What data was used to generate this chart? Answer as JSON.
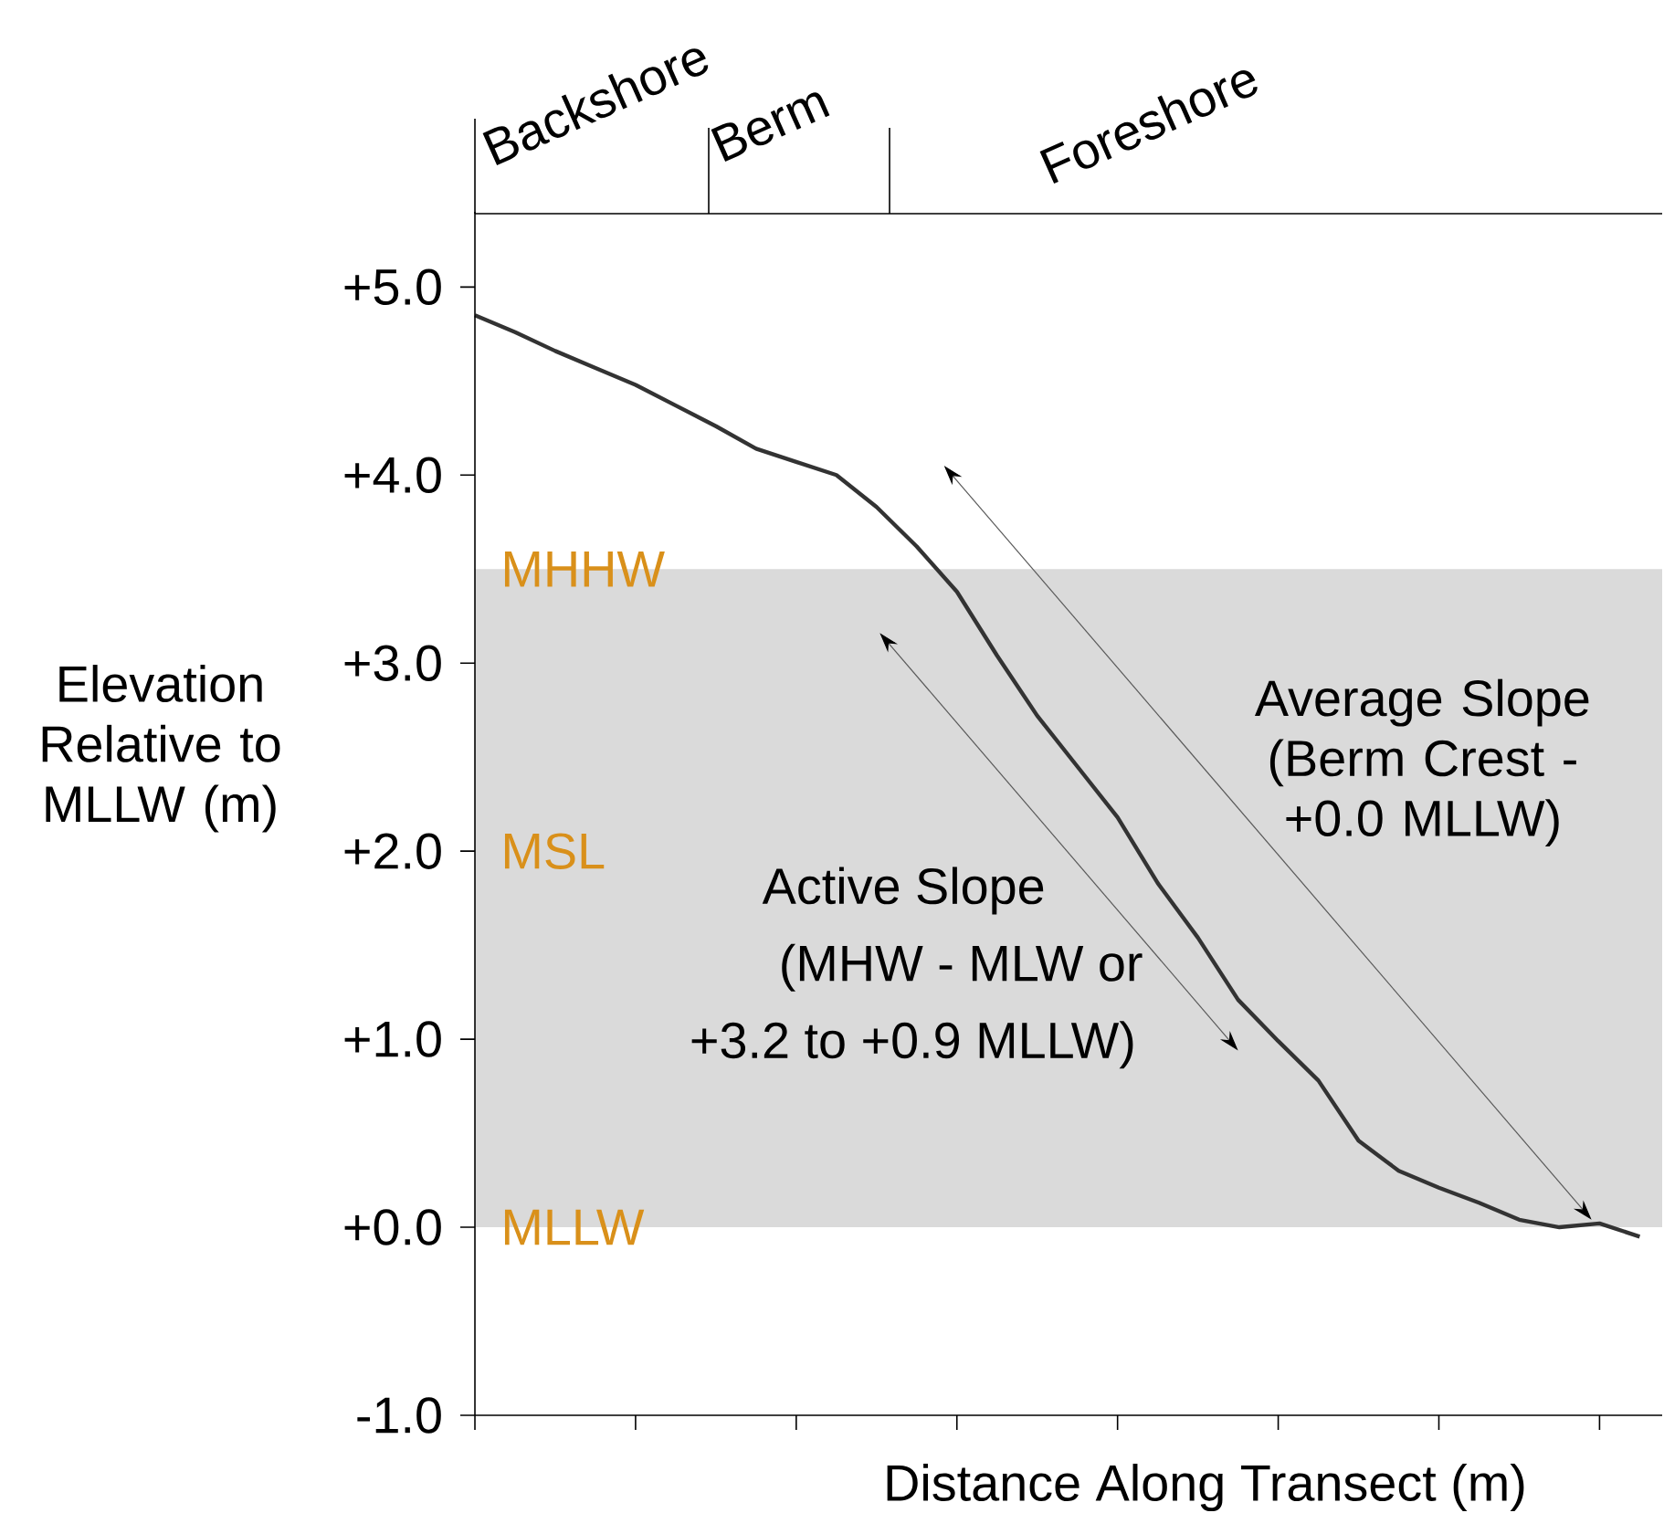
{
  "chart_data": {
    "type": "line",
    "categories": [
      null,
      null,
      null,
      null,
      null,
      null,
      null,
      null,
      null,
      null,
      null,
      null,
      null,
      null,
      null,
      null,
      null,
      null,
      null,
      null,
      null,
      null,
      null,
      null,
      null,
      null,
      null,
      null,
      null,
      null
    ],
    "values": [
      4.85,
      4.76,
      4.66,
      4.57,
      4.48,
      4.37,
      4.26,
      4.14,
      4.07,
      4.0,
      3.83,
      3.62,
      3.38,
      3.04,
      2.72,
      2.45,
      2.18,
      1.83,
      1.54,
      1.21,
      0.99,
      0.78,
      0.46,
      0.3,
      0.21,
      0.13,
      0.04,
      0.0,
      0.02,
      -0.05
    ],
    "color": "#333333",
    "ylim": [
      -1,
      5.4
    ],
    "yticks": [
      {
        "value": -1,
        "label": "-1.0"
      },
      {
        "value": 0,
        "label": "+0.0"
      },
      {
        "value": 1,
        "label": "+1.0"
      },
      {
        "value": 2,
        "label": "+2.0"
      },
      {
        "value": 3,
        "label": "+3.0"
      },
      {
        "value": 4,
        "label": "+4.0"
      },
      {
        "value": 5,
        "label": "+5.0"
      }
    ],
    "tick_labels": "y",
    "xlabel": "Distance Along Transect (m)",
    "ylabel": "Elevation Relative to MLLW (m)",
    "bands": [
      {
        "axis": "y",
        "from": 0,
        "to": 3.5,
        "color": "#dadada"
      }
    ],
    "annotations": [
      "Backshore",
      "Berm",
      "Foreshore",
      {
        "text": "MHHW",
        "y": 3.5
      },
      "MSL",
      {
        "text": "MLLW",
        "y": 0.0
      },
      "Average Slope (Berm Crest - +0.0 MLLW)",
      "Active Slope",
      "(MHW - MLW or",
      "+3.2 to +0.9 MLLW)"
    ]
  }
}
